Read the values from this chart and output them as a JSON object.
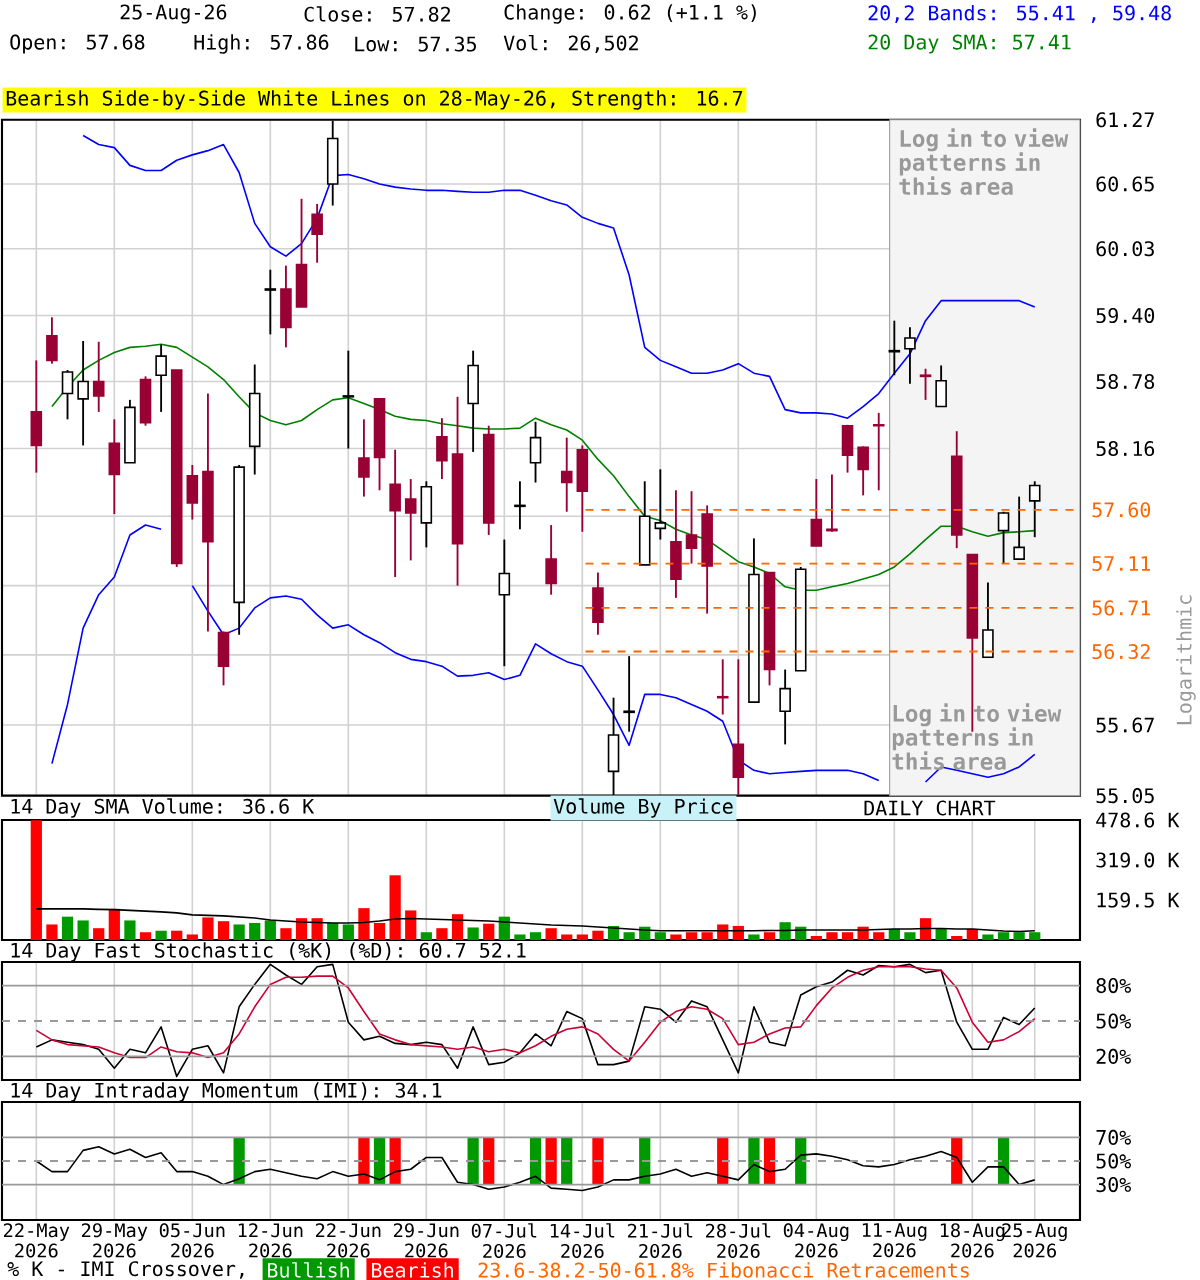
{
  "chart_data": [
    {
      "type": "candlestick",
      "ylabel": "Logarithmic",
      "annotations": [
        "25-Aug-26",
        "Close: 57.82",
        "Change: 0.62 (+1.1 %)",
        "Open: 57.68",
        "High: 57.86",
        "Low: 57.35",
        "Vol: 26,502",
        "20,2 Bands: 55.41 , 59.48",
        "20 Day SMA: 57.41",
        "Bearish Side-by-Side White Lines on 28-May-26, Strength: 16.7",
        "Log in to view patterns in this area"
      ],
      "categories": [
        "22-May 2026",
        null,
        null,
        null,
        null,
        "29-May 2026",
        null,
        null,
        null,
        null,
        "05-Jun 2026",
        null,
        null,
        null,
        null,
        "12-Jun 2026",
        null,
        null,
        null,
        null,
        "22-Jun 2026",
        null,
        null,
        null,
        null,
        "29-Jun 2026",
        null,
        null,
        null,
        null,
        "07-Jul 2026",
        null,
        null,
        null,
        null,
        "14-Jul 2026",
        null,
        null,
        null,
        null,
        "21-Jul 2026",
        null,
        null,
        null,
        null,
        "28-Jul 2026",
        null,
        null,
        null,
        null,
        "04-Aug 2026",
        null,
        null,
        null,
        null,
        "11-Aug 2026",
        null,
        null,
        null,
        null,
        "18-Aug 2026",
        null,
        null,
        null,
        "25-Aug 2026"
      ],
      "ohlc": [
        [
          58.5,
          58.98,
          57.94,
          58.19
        ],
        [
          59.21,
          59.38,
          58.95,
          58.98
        ],
        [
          58.67,
          58.89,
          58.43,
          58.87
        ],
        [
          58.62,
          59.16,
          58.19,
          58.78
        ],
        [
          58.78,
          59.15,
          58.5,
          58.65
        ],
        [
          58.21,
          58.43,
          57.56,
          57.92
        ],
        [
          58.03,
          58.61,
          58.03,
          58.54
        ],
        [
          58.8,
          58.83,
          58.37,
          58.4
        ],
        [
          58.84,
          59.13,
          58.5,
          59.02
        ],
        [
          58.89,
          58.89,
          57.08,
          57.11
        ],
        [
          57.91,
          58.01,
          57.51,
          57.66
        ],
        [
          57.95,
          58.67,
          56.5,
          57.31
        ],
        [
          56.49,
          56.5,
          56.02,
          56.19
        ],
        [
          56.76,
          58.01,
          56.47,
          57.99
        ],
        [
          58.18,
          58.94,
          57.92,
          58.67
        ],
        [
          59.64,
          59.83,
          59.22,
          59.65
        ],
        [
          59.65,
          59.87,
          59.1,
          59.29
        ],
        [
          59.88,
          60.51,
          59.48,
          59.48
        ],
        [
          60.36,
          60.46,
          59.9,
          60.17
        ],
        [
          60.65,
          61.26,
          60.44,
          61.09
        ],
        [
          58.64,
          59.07,
          58.16,
          58.65
        ],
        [
          58.07,
          58.43,
          57.72,
          57.9
        ],
        [
          58.62,
          58.62,
          57.78,
          58.08
        ],
        [
          57.83,
          58.15,
          56.99,
          57.59
        ],
        [
          57.7,
          57.88,
          57.14,
          57.57
        ],
        [
          57.48,
          57.86,
          57.26,
          57.81
        ],
        [
          58.27,
          58.44,
          57.88,
          58.05
        ],
        [
          58.11,
          58.64,
          56.91,
          57.29
        ],
        [
          58.58,
          59.07,
          58.13,
          58.93
        ],
        [
          58.29,
          58.37,
          57.37,
          57.48
        ],
        [
          56.83,
          57.33,
          56.19,
          57.02
        ],
        [
          57.63,
          57.86,
          57.42,
          57.64
        ],
        [
          58.03,
          58.41,
          57.85,
          58.26
        ],
        [
          57.15,
          57.46,
          56.83,
          56.93
        ],
        [
          57.95,
          58.26,
          57.58,
          57.85
        ],
        [
          58.15,
          58.19,
          57.4,
          57.77
        ],
        [
          56.89,
          57.03,
          56.47,
          56.58
        ],
        [
          55.26,
          55.91,
          55.05,
          55.58
        ],
        [
          55.78,
          56.28,
          55.61,
          55.79
        ],
        [
          57.1,
          57.86,
          57.1,
          57.54
        ],
        [
          57.43,
          57.97,
          57.33,
          57.48
        ],
        [
          57.31,
          57.78,
          56.8,
          56.97
        ],
        [
          57.37,
          57.77,
          57.11,
          57.25
        ],
        [
          57.56,
          57.64,
          56.66,
          57.09
        ],
        [
          55.92,
          56.25,
          55.76,
          55.91
        ],
        [
          55.5,
          56.25,
          55.06,
          55.21
        ],
        [
          55.87,
          57.34,
          55.87,
          57.01
        ],
        [
          57.03,
          57.03,
          56.02,
          56.16
        ],
        [
          55.79,
          56.16,
          55.5,
          55.99
        ],
        [
          56.15,
          57.08,
          56.15,
          57.06
        ],
        [
          57.51,
          57.88,
          57.27,
          57.27
        ],
        [
          57.42,
          57.92,
          57.4,
          57.41
        ],
        [
          58.37,
          58.38,
          57.94,
          58.1
        ],
        [
          58.17,
          58.18,
          57.73,
          57.97
        ],
        [
          58.38,
          58.49,
          57.78,
          58.37
        ],
        [
          59.06,
          59.35,
          58.84,
          59.07
        ],
        [
          59.09,
          59.29,
          58.76,
          59.19
        ],
        [
          58.84,
          58.9,
          58.61,
          58.83
        ],
        [
          58.55,
          58.93,
          58.55,
          58.79
        ],
        [
          58.09,
          58.32,
          57.25,
          57.37
        ],
        [
          57.19,
          57.19,
          55.61,
          56.44
        ],
        [
          56.27,
          56.94,
          56.27,
          56.51
        ],
        [
          57.41,
          57.58,
          57.11,
          57.57
        ],
        [
          57.15,
          57.72,
          57.15,
          57.26
        ],
        [
          57.68,
          57.86,
          57.35,
          57.82
        ]
      ],
      "series": [
        {
          "type": "line",
          "color": "#0000ff",
          "values": [
            null,
            null,
            null,
            61.12,
            61.03,
            61.0,
            60.83,
            60.78,
            60.78,
            60.88,
            60.93,
            60.97,
            61.03,
            60.76,
            60.27,
            60.05,
            59.96,
            60.08,
            60.32,
            60.73,
            60.74,
            60.7,
            60.65,
            60.62,
            60.6,
            60.59,
            60.59,
            60.58,
            60.57,
            60.57,
            60.59,
            60.59,
            60.54,
            60.49,
            60.45,
            60.33,
            60.27,
            60.23,
            59.78,
            59.1,
            58.98,
            58.92,
            58.86,
            58.86,
            58.89,
            58.95,
            58.86,
            58.83,
            58.52,
            58.49,
            58.49,
            58.48,
            58.44,
            58.55,
            58.67,
            58.86,
            59.04,
            59.35,
            59.54,
            59.54,
            59.54,
            59.54,
            59.54,
            59.54,
            59.48
          ]
        },
        {
          "type": "line",
          "color": "#0000ff",
          "values": [
            null,
            55.33,
            55.85,
            56.53,
            56.83,
            56.99,
            57.37,
            57.46,
            57.42,
            null,
            56.91,
            56.68,
            56.47,
            56.53,
            56.71,
            56.8,
            56.82,
            56.79,
            56.65,
            56.53,
            56.56,
            56.47,
            56.4,
            56.31,
            56.25,
            56.23,
            56.19,
            56.1,
            56.11,
            56.13,
            56.07,
            56.11,
            56.39,
            56.3,
            56.23,
            56.19,
            55.98,
            55.76,
            55.49,
            55.94,
            55.94,
            55.91,
            55.85,
            55.79,
            55.7,
            55.36,
            55.27,
            55.24,
            55.25,
            55.26,
            55.27,
            55.27,
            55.27,
            55.24,
            55.18,
            null,
            null,
            55.17,
            55.3,
            55.27,
            55.24,
            55.21,
            55.24,
            55.3,
            55.41
          ]
        },
        {
          "type": "line",
          "color": "#008000",
          "values": [
            null,
            58.55,
            58.73,
            58.89,
            58.98,
            59.05,
            59.1,
            59.11,
            59.13,
            59.1,
            59.01,
            58.92,
            58.8,
            58.64,
            58.49,
            58.42,
            58.38,
            58.42,
            58.52,
            58.61,
            58.63,
            58.58,
            58.52,
            58.46,
            58.43,
            58.42,
            58.39,
            58.37,
            58.35,
            58.34,
            58.34,
            58.35,
            58.44,
            58.38,
            58.33,
            58.24,
            58.06,
            57.91,
            57.72,
            57.54,
            57.5,
            57.42,
            57.37,
            57.33,
            57.23,
            57.13,
            57.08,
            57.02,
            56.9,
            56.87,
            56.87,
            56.9,
            56.93,
            56.97,
            57.01,
            57.08,
            57.2,
            57.33,
            57.45,
            57.45,
            57.4,
            57.36,
            57.39,
            57.4,
            57.41
          ]
        }
      ],
      "ylim": [
        55.05,
        61.27
      ],
      "log": true,
      "grid": true,
      "tick_labels": "y",
      "yticks": [
        55.05,
        55.67,
        {
          "value": 56.29,
          "label": null
        },
        {
          "value": 56.91,
          "label": null
        },
        {
          "value": 57.54,
          "label": null
        },
        58.16,
        58.78,
        {
          "value": 59.4,
          "label": "59.40"
        },
        60.03,
        60.65,
        61.27
      ],
      "ref_lines": [
        {
          "axis": "y",
          "value": 57.6,
          "label": "57.60",
          "color": "#ff6600",
          "line_style": "dashed"
        },
        {
          "axis": "y",
          "value": 57.11,
          "label": "57.11",
          "color": "#ff6600",
          "line_style": "dashed"
        },
        {
          "axis": "y",
          "value": 56.71,
          "label": "56.71",
          "color": "#ff6600",
          "line_style": "dashed"
        },
        {
          "axis": "y",
          "value": 56.32,
          "label": "56.32",
          "color": "#ff6600",
          "line_style": "dashed"
        }
      ],
      "bands": [
        {
          "axis": "x",
          "from": "11-Aug 2026",
          "to": "25-Aug 2026",
          "label": "Log in to view patterns in this area",
          "color": "#f4f4f4"
        }
      ]
    },
    {
      "type": "bar",
      "title": "14 Day SMA Volume: 36.6 K",
      "annotations": [
        "Volume By Price",
        "DAILY CHART"
      ],
      "categories": [
        "22-May 2026",
        null,
        null,
        null,
        null,
        "29-May 2026",
        null,
        null,
        null,
        null,
        "05-Jun 2026",
        null,
        null,
        null,
        null,
        "12-Jun 2026",
        null,
        null,
        null,
        null,
        "22-Jun 2026",
        null,
        null,
        null,
        null,
        "29-Jun 2026",
        null,
        null,
        null,
        null,
        "07-Jul 2026",
        null,
        null,
        null,
        null,
        "14-Jul 2026",
        null,
        null,
        null,
        null,
        "21-Jul 2026",
        null,
        null,
        null,
        null,
        "28-Jul 2026",
        null,
        null,
        null,
        null,
        "04-Aug 2026",
        null,
        null,
        null,
        null,
        "11-Aug 2026",
        null,
        null,
        null,
        null,
        "18-Aug 2026",
        null,
        null,
        null,
        "25-Aug 2026"
      ],
      "series": [
        {
          "type": "bar",
          "values": [
            478,
            62,
            93,
            78,
            47,
            124,
            78,
            31,
            37,
            37,
            22,
            90,
            75,
            62,
            68,
            78,
            47,
            87,
            87,
            68,
            62,
            127,
            68,
            258,
            118,
            31,
            47,
            103,
            50,
            65,
            93,
            22,
            31,
            47,
            22,
            22,
            37,
            56,
            31,
            53,
            31,
            22,
            31,
            31,
            62,
            56,
            22,
            31,
            71,
            53,
            16,
            31,
            31,
            53,
            31,
            44,
            31,
            87,
            44,
            16,
            44,
            22,
            31,
            31,
            31
          ],
          "colors": [
            "#ff0000",
            "#ff0000",
            "#009900",
            "#009900",
            "#ff0000",
            "#ff0000",
            "#009900",
            "#ff0000",
            "#009900",
            "#ff0000",
            "#ff0000",
            "#ff0000",
            "#ff0000",
            "#009900",
            "#009900",
            "#009900",
            "#ff0000",
            "#ff0000",
            "#ff0000",
            "#009900",
            "#009900",
            "#ff0000",
            "#ff0000",
            "#ff0000",
            "#ff0000",
            "#009900",
            "#ff0000",
            "#ff0000",
            "#009900",
            "#ff0000",
            "#009900",
            "#009900",
            "#009900",
            "#ff0000",
            "#ff0000",
            "#ff0000",
            "#ff0000",
            "#009900",
            "#009900",
            "#009900",
            "#009900",
            "#ff0000",
            "#ff0000",
            "#ff0000",
            "#ff0000",
            "#ff0000",
            "#009900",
            "#ff0000",
            "#009900",
            "#009900",
            "#ff0000",
            "#ff0000",
            "#ff0000",
            "#ff0000",
            "#ff0000",
            "#009900",
            "#009900",
            "#ff0000",
            "#009900",
            "#ff0000",
            "#ff0000",
            "#009900",
            "#009900",
            "#009900",
            "#009900"
          ]
        },
        {
          "type": "line",
          "color": "#000000",
          "values": [
            124,
            124,
            124,
            124,
            122,
            121,
            118,
            115,
            112,
            108,
            100,
            98,
            96,
            92,
            88,
            80,
            76,
            72,
            70,
            68,
            68,
            70,
            76,
            84,
            86,
            84,
            82,
            80,
            78,
            76,
            72,
            68,
            64,
            60,
            58,
            56,
            52,
            48,
            44,
            40,
            37,
            37,
            37,
            37,
            37,
            37,
            37,
            38,
            38,
            40,
            40,
            40,
            40,
            40,
            42,
            44,
            44,
            46,
            46,
            44,
            44,
            40,
            36,
            34,
            37
          ]
        }
      ],
      "ylim": [
        0,
        478.6
      ],
      "yticks": [
        {
          "value": 159.5,
          "label": "159.5 K"
        },
        {
          "value": 319.0,
          "label": "319.0 K"
        },
        {
          "value": 478.6,
          "label": "478.6 K"
        }
      ],
      "grid": "x",
      "tick_labels": "y"
    },
    {
      "type": "line",
      "title": "14 Day Fast Stochastic (%K) (%D): 60.7 52.1",
      "categories": [
        "22-May 2026",
        null,
        null,
        null,
        null,
        "29-May 2026",
        null,
        null,
        null,
        null,
        "05-Jun 2026",
        null,
        null,
        null,
        null,
        "12-Jun 2026",
        null,
        null,
        null,
        null,
        "22-Jun 2026",
        null,
        null,
        null,
        null,
        "29-Jun 2026",
        null,
        null,
        null,
        null,
        "07-Jul 2026",
        null,
        null,
        null,
        null,
        "14-Jul 2026",
        null,
        null,
        null,
        null,
        "21-Jul 2026",
        null,
        null,
        null,
        null,
        "28-Jul 2026",
        null,
        null,
        null,
        null,
        "04-Aug 2026",
        null,
        null,
        null,
        null,
        "11-Aug 2026",
        null,
        null,
        null,
        null,
        "18-Aug 2026",
        null,
        null,
        null,
        "25-Aug 2026"
      ],
      "series": [
        {
          "color": "#000000",
          "values": [
            28,
            34,
            32,
            30,
            26,
            10,
            26,
            23,
            45,
            3,
            26,
            29,
            6,
            62,
            81,
            98,
            89,
            81,
            96,
            98,
            49,
            34,
            37,
            31,
            30,
            32,
            30,
            10,
            45,
            13,
            15,
            23,
            39,
            29,
            58,
            52,
            13,
            13,
            16,
            62,
            60,
            49,
            67,
            62,
            34,
            6,
            62,
            32,
            29,
            72,
            79,
            83,
            93,
            89,
            97,
            96,
            98,
            91,
            93,
            49,
            26,
            26,
            53,
            47,
            61
          ]
        },
        {
          "color": "#cc0033",
          "values": [
            42,
            34,
            30,
            29,
            28,
            23,
            19,
            19,
            28,
            24,
            23,
            19,
            23,
            39,
            62,
            81,
            87,
            87,
            88,
            88,
            78,
            58,
            39,
            34,
            30,
            29,
            28,
            26,
            28,
            24,
            26,
            23,
            29,
            37,
            43,
            45,
            39,
            26,
            16,
            32,
            49,
            58,
            62,
            60,
            52,
            30,
            32,
            39,
            44,
            45,
            63,
            78,
            87,
            93,
            96,
            96,
            96,
            94,
            93,
            78,
            49,
            32,
            34,
            41,
            52
          ]
        }
      ],
      "ylim": [
        0,
        100
      ],
      "yticks": [
        {
          "value": 20,
          "label": "20%"
        },
        {
          "value": 50,
          "label": "50%"
        },
        {
          "value": 80,
          "label": "80%"
        }
      ],
      "ref_lines": [
        {
          "axis": "y",
          "value": 80,
          "color": "#999999"
        },
        {
          "axis": "y",
          "value": 50,
          "color": "#999999",
          "line_style": "dashed"
        },
        {
          "axis": "y",
          "value": 20,
          "color": "#999999"
        }
      ],
      "grid": "x",
      "tick_labels": "y"
    },
    {
      "type": "line",
      "title": "14 Day Intraday Momentum (IMI): 34.1",
      "legend_title": "% K - IMI Crossover,",
      "legend": "bottom",
      "annotations": [
        "23.6-38.2-50-61.8% Fibonacci Retracements"
      ],
      "categories": [
        "22-May 2026",
        null,
        null,
        null,
        null,
        "29-May 2026",
        null,
        null,
        null,
        null,
        "05-Jun 2026",
        null,
        null,
        null,
        null,
        "12-Jun 2026",
        null,
        null,
        null,
        null,
        "22-Jun 2026",
        null,
        null,
        null,
        null,
        "29-Jun 2026",
        null,
        null,
        null,
        null,
        "07-Jul 2026",
        null,
        null,
        null,
        null,
        "14-Jul 2026",
        null,
        null,
        null,
        null,
        "21-Jul 2026",
        null,
        null,
        null,
        null,
        "28-Jul 2026",
        null,
        null,
        null,
        null,
        "04-Aug 2026",
        null,
        null,
        null,
        null,
        "11-Aug 2026",
        null,
        null,
        null,
        null,
        "18-Aug 2026",
        null,
        null,
        null,
        "25-Aug 2026"
      ],
      "series": [
        {
          "type": "bar",
          "name": "Bullish",
          "color": "#009900",
          "values": [
            null,
            null,
            null,
            null,
            null,
            null,
            null,
            null,
            null,
            null,
            null,
            null,
            null,
            40,
            null,
            null,
            null,
            null,
            null,
            null,
            null,
            null,
            40,
            null,
            null,
            null,
            null,
            null,
            40,
            null,
            null,
            null,
            40,
            null,
            40,
            null,
            null,
            null,
            null,
            40,
            null,
            null,
            null,
            null,
            null,
            null,
            40,
            null,
            null,
            40,
            null,
            null,
            null,
            null,
            null,
            null,
            null,
            null,
            null,
            null,
            null,
            null,
            40,
            null,
            null
          ],
          "base": [
            null,
            null,
            null,
            null,
            null,
            null,
            null,
            null,
            null,
            null,
            null,
            null,
            null,
            30,
            null,
            null,
            null,
            null,
            null,
            null,
            null,
            null,
            30,
            null,
            null,
            null,
            null,
            null,
            30,
            null,
            null,
            null,
            30,
            null,
            30,
            null,
            null,
            null,
            null,
            30,
            null,
            null,
            null,
            null,
            null,
            null,
            30,
            null,
            null,
            30,
            null,
            null,
            null,
            null,
            null,
            null,
            null,
            null,
            null,
            null,
            null,
            null,
            30,
            null,
            null
          ]
        },
        {
          "type": "bar",
          "name": "Bearish",
          "color": "#ff0000",
          "values": [
            null,
            null,
            null,
            null,
            null,
            null,
            null,
            null,
            null,
            null,
            null,
            null,
            null,
            null,
            null,
            null,
            null,
            null,
            null,
            null,
            null,
            40,
            null,
            40,
            null,
            null,
            null,
            null,
            null,
            40,
            null,
            null,
            null,
            40,
            null,
            null,
            40,
            null,
            null,
            null,
            null,
            null,
            null,
            null,
            40,
            null,
            null,
            40,
            null,
            null,
            null,
            null,
            null,
            null,
            null,
            null,
            null,
            null,
            null,
            40,
            null,
            null,
            null,
            null,
            null
          ],
          "base": [
            null,
            null,
            null,
            null,
            null,
            null,
            null,
            null,
            null,
            null,
            null,
            null,
            null,
            null,
            null,
            null,
            null,
            null,
            null,
            null,
            null,
            30,
            null,
            30,
            null,
            null,
            null,
            null,
            null,
            30,
            null,
            null,
            null,
            30,
            null,
            null,
            30,
            null,
            null,
            null,
            null,
            null,
            null,
            null,
            30,
            null,
            null,
            30,
            null,
            null,
            null,
            null,
            null,
            null,
            null,
            null,
            null,
            null,
            null,
            30,
            null,
            null,
            null,
            null,
            null
          ]
        },
        {
          "type": "line",
          "color": "#000000",
          "values": [
            50,
            41,
            41,
            59,
            62,
            56,
            60,
            53,
            57,
            41,
            41,
            37,
            30,
            35,
            41,
            43,
            40,
            37,
            35,
            41,
            37,
            39,
            34,
            41,
            43,
            53,
            53,
            32,
            30,
            26,
            28,
            32,
            37,
            27,
            26,
            25,
            28,
            34,
            34,
            37,
            39,
            43,
            37,
            40,
            37,
            34,
            47,
            41,
            43,
            55,
            56,
            54,
            51,
            46,
            45,
            47,
            51,
            54,
            58,
            53,
            32,
            45,
            45,
            30,
            34
          ]
        }
      ],
      "ylim": [
        0,
        100
      ],
      "yticks": [
        {
          "value": 30,
          "label": "30%"
        },
        {
          "value": 50,
          "label": "50%"
        },
        {
          "value": 70,
          "label": "70%"
        }
      ],
      "ref_lines": [
        {
          "axis": "y",
          "value": 70,
          "color": "#999999"
        },
        {
          "axis": "y",
          "value": 50,
          "color": "#999999",
          "line_style": "dashed"
        },
        {
          "axis": "y",
          "value": 30,
          "color": "#999999"
        }
      ],
      "grid": "x"
    }
  ]
}
